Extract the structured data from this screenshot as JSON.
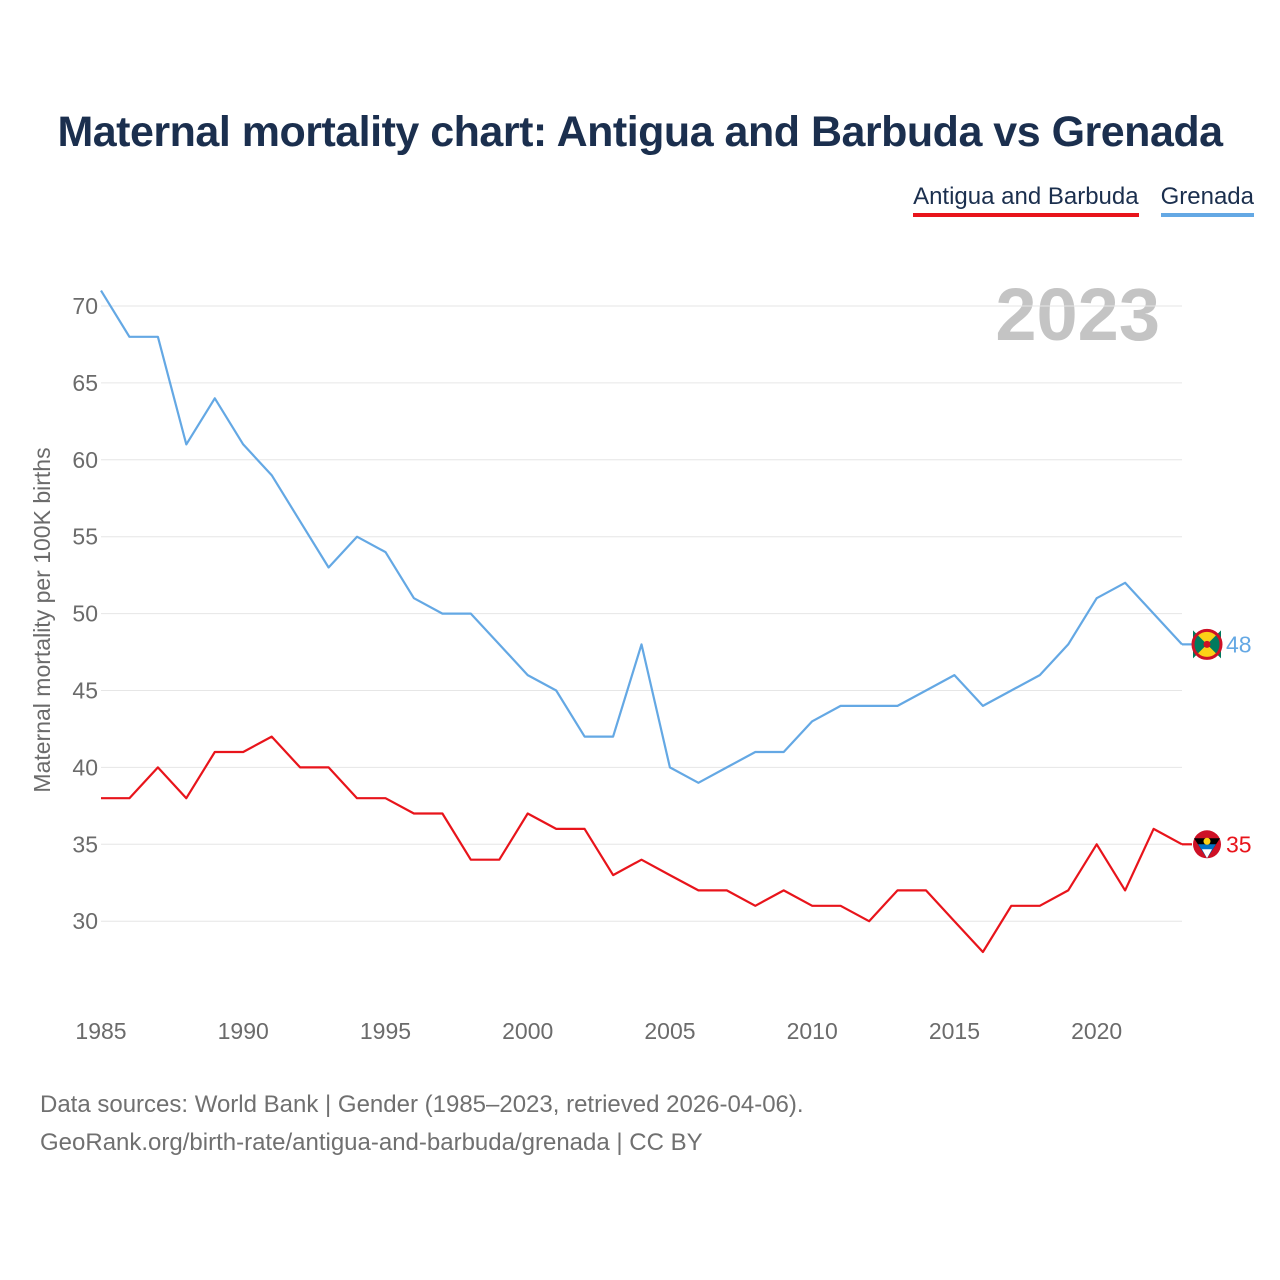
{
  "title": "Maternal mortality chart: Antigua and Barbuda vs Grenada",
  "legend": [
    {
      "label": "Antigua and Barbuda",
      "color": "#e8141b"
    },
    {
      "label": "Grenada",
      "color": "#64a8e4"
    }
  ],
  "footer": {
    "line1": "Data sources: World Bank | Gender (1985–2023, retrieved 2026-04-06).",
    "line2": "GeoRank.org/birth-rate/antigua-and-barbuda/grenada | CC BY"
  },
  "chart_data": {
    "type": "line",
    "title": "Maternal mortality chart: Antigua and Barbuda vs Grenada",
    "year_label": "2023",
    "xlabel": "",
    "ylabel": "Maternal mortality per 100K births",
    "xlim": [
      1985,
      2023
    ],
    "ylim": [
      25,
      72
    ],
    "x_ticks": [
      1985,
      1990,
      1995,
      2000,
      2005,
      2010,
      2015,
      2020
    ],
    "y_ticks": [
      30,
      35,
      40,
      45,
      50,
      55,
      60,
      65,
      70
    ],
    "x": [
      1985,
      1986,
      1987,
      1988,
      1989,
      1990,
      1991,
      1992,
      1993,
      1994,
      1995,
      1996,
      1997,
      1998,
      1999,
      2000,
      2001,
      2002,
      2003,
      2004,
      2005,
      2006,
      2007,
      2008,
      2009,
      2010,
      2011,
      2012,
      2013,
      2014,
      2015,
      2016,
      2017,
      2018,
      2019,
      2020,
      2021,
      2022,
      2023
    ],
    "series": [
      {
        "name": "Antigua and Barbuda",
        "color": "#e8141b",
        "end_label": "35",
        "values": [
          38,
          38,
          40,
          38,
          41,
          41,
          42,
          40,
          40,
          38,
          38,
          37,
          37,
          34,
          34,
          37,
          36,
          36,
          33,
          34,
          33,
          32,
          32,
          31,
          32,
          31,
          31,
          30,
          32,
          32,
          30,
          28,
          31,
          31,
          32,
          35,
          32,
          36,
          35
        ]
      },
      {
        "name": "Grenada",
        "color": "#64a8e4",
        "end_label": "48",
        "values": [
          71,
          68,
          68,
          61,
          64,
          61,
          59,
          56,
          53,
          55,
          54,
          51,
          50,
          50,
          48,
          46,
          45,
          42,
          42,
          48,
          40,
          39,
          40,
          41,
          41,
          43,
          44,
          44,
          44,
          45,
          46,
          44,
          45,
          46,
          48,
          51,
          52,
          50,
          48
        ]
      }
    ]
  }
}
